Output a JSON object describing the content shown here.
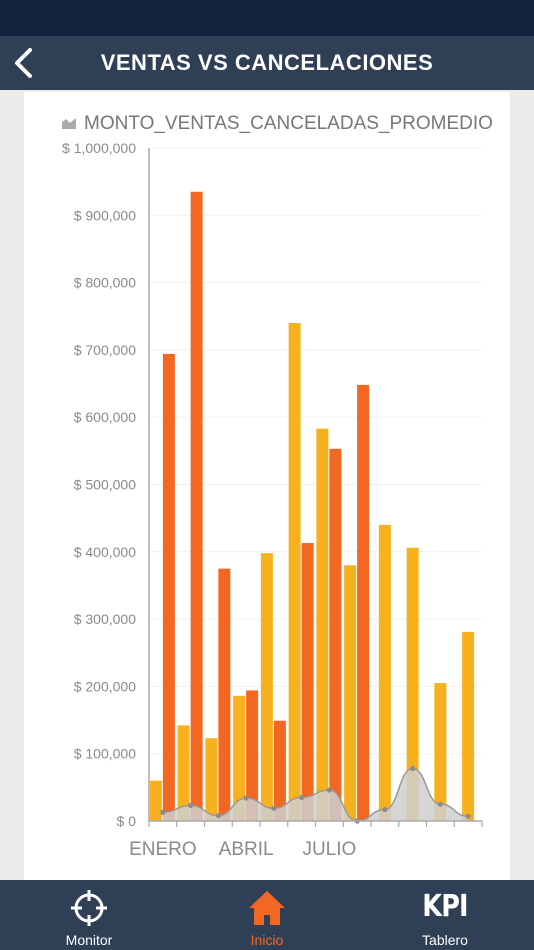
{
  "header": {
    "title": "VENTAS VS CANCELACIONES",
    "back_icon": "chevron-left-icon"
  },
  "colors": {
    "nav_bg": "#2f3f56",
    "status_bg": "#15243d",
    "series_a": "#f7b11e",
    "series_b": "#f26722",
    "area": "#cfcfcf",
    "accent": "#f26722"
  },
  "chart_data": {
    "type": "bar",
    "legend": {
      "label": "MONTO_VENTAS_CANCELADAS_PROMEDIO",
      "icon": "area-chart-icon",
      "placement": "top-left"
    },
    "x_tick_labels": [
      "ENERO",
      "ABRIL",
      "JULIO"
    ],
    "x_tick_positions": [
      0,
      3,
      6
    ],
    "y_ticks": [
      "$ 0",
      "$ 100,000",
      "$ 200,000",
      "$ 300,000",
      "$ 400,000",
      "$ 500,000",
      "$ 600,000",
      "$ 700,000",
      "$ 800,000",
      "$ 900,000",
      "$ 1,000,000"
    ],
    "ylim": [
      0,
      1000000
    ],
    "grid": true,
    "categories": [
      "1",
      "2",
      "3",
      "4",
      "5",
      "6",
      "7",
      "8",
      "9",
      "10",
      "11",
      "12"
    ],
    "series": [
      {
        "type": "bar",
        "values": [
          60000,
          142000,
          123000,
          186000,
          398000,
          740000,
          583000,
          380000,
          440000,
          406000,
          205000,
          281000
        ]
      },
      {
        "type": "bar",
        "values": [
          694000,
          935000,
          375000,
          194000,
          149000,
          413000,
          553000,
          648000,
          null,
          null,
          null,
          null
        ]
      },
      {
        "name": "MONTO_VENTAS_CANCELADAS_PROMEDIO",
        "type": "area",
        "values": [
          13000,
          23000,
          8000,
          34000,
          19000,
          35000,
          46000,
          0,
          17000,
          78000,
          25000,
          7000
        ]
      }
    ]
  },
  "tabs": [
    {
      "label": "Monitor",
      "icon": "crosshair-target-icon"
    },
    {
      "label": "Inicio",
      "icon": "home-icon",
      "active": true
    },
    {
      "label": "Tablero",
      "icon": "kpi-icon",
      "glyph": "KPI"
    }
  ]
}
